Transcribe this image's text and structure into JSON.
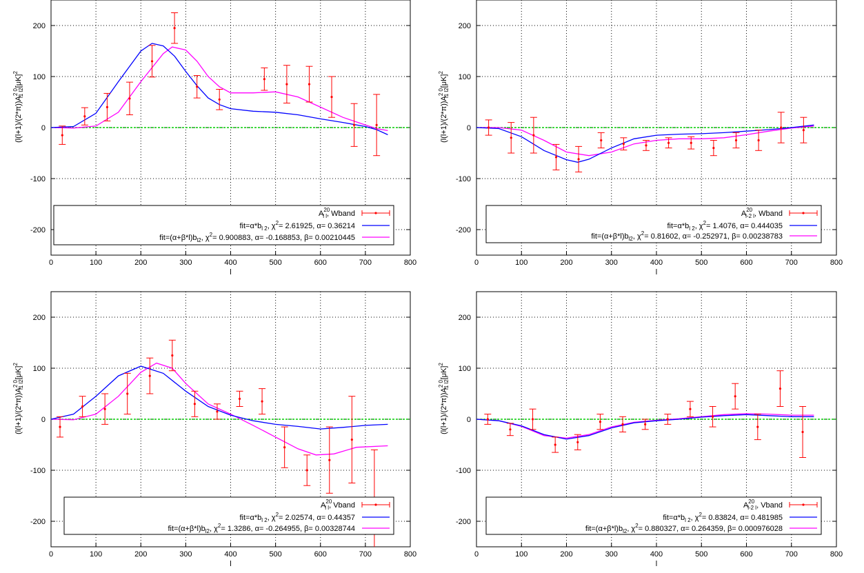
{
  "figure": {
    "xlim": [
      0,
      800
    ],
    "ylim": [
      -250,
      250
    ],
    "xticks": [
      0,
      100,
      200,
      300,
      400,
      500,
      600,
      700,
      800
    ],
    "yticks": [
      -200,
      -100,
      0,
      100,
      200
    ],
    "grid": true,
    "colors": {
      "data": "#ff0000",
      "fit1": "#0000ff",
      "fit2": "#ff00ff",
      "zero": "#00cc00",
      "grid": "#000000",
      "text": "#000000"
    },
    "legend_symbol_name": "A",
    "legend_symbol_sup": "20",
    "legend_location": "bottom"
  },
  "chart_data": [
    {
      "type": "line",
      "xlabel": "l",
      "ylabel": "(l(l+1)/(2*π))A",
      "ylabel_sup": "2 0",
      "ylabel_sub": "l1 l2",
      "ylabel_unit": "[μK]",
      "ylabel_unit_sup": "2",
      "legend_sub": "l l",
      "legend_band": ", Wband",
      "fit1_pre": "fit=α*b",
      "fit1_sub": "l 2",
      "fit1_chi_pre": ", χ",
      "fit1_chi_sup": "2",
      "fit1_text": "= 2.61925, α= 0.36214",
      "fit2_pre": "fit=(α+β*l)b",
      "fit2_sub": "l2",
      "fit2_chi_pre": ", χ",
      "fit2_chi_sup": "2",
      "fit2_text": "= 0.900883, α= -0.168853, β= 0.00210445",
      "data_points": [
        {
          "x": 25,
          "y": -15,
          "err": 18
        },
        {
          "x": 75,
          "y": 22,
          "err": 17
        },
        {
          "x": 125,
          "y": 40,
          "err": 27
        },
        {
          "x": 175,
          "y": 57,
          "err": 32
        },
        {
          "x": 225,
          "y": 130,
          "err": 31
        },
        {
          "x": 275,
          "y": 195,
          "err": 30
        },
        {
          "x": 325,
          "y": 80,
          "err": 22
        },
        {
          "x": 375,
          "y": 55,
          "err": 20
        },
        {
          "x": 475,
          "y": 95,
          "err": 22
        },
        {
          "x": 525,
          "y": 85,
          "err": 37
        },
        {
          "x": 575,
          "y": 85,
          "err": 35
        },
        {
          "x": 625,
          "y": 60,
          "err": 40
        },
        {
          "x": 675,
          "y": 5,
          "err": 42
        },
        {
          "x": 725,
          "y": 5,
          "err": 60
        }
      ],
      "fit1_curve": [
        [
          0,
          0
        ],
        [
          50,
          2
        ],
        [
          100,
          28
        ],
        [
          150,
          90
        ],
        [
          200,
          150
        ],
        [
          225,
          165
        ],
        [
          250,
          160
        ],
        [
          275,
          140
        ],
        [
          300,
          110
        ],
        [
          325,
          82
        ],
        [
          350,
          58
        ],
        [
          375,
          45
        ],
        [
          400,
          37
        ],
        [
          450,
          32
        ],
        [
          500,
          30
        ],
        [
          550,
          25
        ],
        [
          600,
          17
        ],
        [
          650,
          10
        ],
        [
          700,
          2
        ],
        [
          725,
          -4
        ],
        [
          750,
          -14
        ]
      ],
      "fit2_curve": [
        [
          0,
          0
        ],
        [
          50,
          -1
        ],
        [
          100,
          3
        ],
        [
          150,
          30
        ],
        [
          200,
          90
        ],
        [
          250,
          145
        ],
        [
          270,
          158
        ],
        [
          300,
          152
        ],
        [
          325,
          130
        ],
        [
          350,
          100
        ],
        [
          375,
          80
        ],
        [
          400,
          68
        ],
        [
          450,
          68
        ],
        [
          500,
          70
        ],
        [
          550,
          60
        ],
        [
          600,
          40
        ],
        [
          650,
          20
        ],
        [
          700,
          5
        ],
        [
          725,
          -2
        ],
        [
          750,
          -6
        ]
      ]
    },
    {
      "type": "line",
      "xlabel": "l",
      "ylabel": "(l(l+1)/(2*π))A",
      "ylabel_sup": "2 0",
      "ylabel_sub": "l1 l2",
      "ylabel_unit": "[μK]",
      "ylabel_unit_sup": "2",
      "legend_sub": "l-2 l",
      "legend_band": ", Wband",
      "fit1_pre": "fit=α*b",
      "fit1_sub": "l 2",
      "fit1_chi_pre": ", χ",
      "fit1_chi_sup": "2",
      "fit1_text": "= 1.4076, α= 0.444035",
      "fit2_pre": "fit=(α+β*l)b",
      "fit2_sub": "l2",
      "fit2_chi_pre": ", χ",
      "fit2_chi_sup": "2",
      "fit2_text": "= 0.81602, α= -0.252971, β= 0.00238783",
      "data_points": [
        {
          "x": 27,
          "y": 0,
          "err": 15
        },
        {
          "x": 77,
          "y": -20,
          "err": 30
        },
        {
          "x": 127,
          "y": -15,
          "err": 35
        },
        {
          "x": 177,
          "y": -58,
          "err": 25
        },
        {
          "x": 227,
          "y": -62,
          "err": 25
        },
        {
          "x": 277,
          "y": -25,
          "err": 15
        },
        {
          "x": 327,
          "y": -32,
          "err": 12
        },
        {
          "x": 377,
          "y": -35,
          "err": 10
        },
        {
          "x": 427,
          "y": -30,
          "err": 10
        },
        {
          "x": 477,
          "y": -30,
          "err": 12
        },
        {
          "x": 527,
          "y": -40,
          "err": 15
        },
        {
          "x": 577,
          "y": -25,
          "err": 15
        },
        {
          "x": 627,
          "y": -25,
          "err": 20
        },
        {
          "x": 677,
          "y": 0,
          "err": 30
        },
        {
          "x": 727,
          "y": -5,
          "err": 25
        }
      ],
      "fit1_curve": [
        [
          0,
          0
        ],
        [
          50,
          -2
        ],
        [
          100,
          -18
        ],
        [
          150,
          -45
        ],
        [
          200,
          -63
        ],
        [
          225,
          -68
        ],
        [
          250,
          -62
        ],
        [
          300,
          -40
        ],
        [
          350,
          -22
        ],
        [
          400,
          -15
        ],
        [
          450,
          -13
        ],
        [
          500,
          -12
        ],
        [
          550,
          -10
        ],
        [
          600,
          -7
        ],
        [
          650,
          -4
        ],
        [
          700,
          0
        ],
        [
          750,
          5
        ]
      ],
      "fit2_curve": [
        [
          0,
          0
        ],
        [
          50,
          0
        ],
        [
          100,
          -5
        ],
        [
          150,
          -25
        ],
        [
          200,
          -48
        ],
        [
          250,
          -55
        ],
        [
          300,
          -48
        ],
        [
          350,
          -32
        ],
        [
          400,
          -25
        ],
        [
          450,
          -22
        ],
        [
          500,
          -22
        ],
        [
          550,
          -20
        ],
        [
          600,
          -14
        ],
        [
          650,
          -7
        ],
        [
          700,
          -1
        ],
        [
          750,
          3
        ]
      ]
    },
    {
      "type": "line",
      "xlabel": "l",
      "ylabel": "(l(l+1)/(2*π))A",
      "ylabel_sup": "2 0",
      "ylabel_sub": "l1 l2",
      "ylabel_unit": "[μK]",
      "ylabel_unit_sup": "2",
      "legend_sub": "l l",
      "legend_band": ", Vband",
      "fit1_pre": "fit=α*b",
      "fit1_sub": "l 2",
      "fit1_chi_pre": ", χ",
      "fit1_chi_sup": "2",
      "fit1_text": "= 2.02574, α= 0.44357",
      "fit2_pre": "fit=(α+β*l)b",
      "fit2_sub": "l2",
      "fit2_chi_pre": ", χ",
      "fit2_chi_sup": "2",
      "fit2_text": "= 1.3286, α= -0.264955, β= 0.00328744",
      "data_points": [
        {
          "x": 20,
          "y": -15,
          "err": 20
        },
        {
          "x": 70,
          "y": 25,
          "err": 20
        },
        {
          "x": 120,
          "y": 20,
          "err": 30
        },
        {
          "x": 170,
          "y": 50,
          "err": 40
        },
        {
          "x": 220,
          "y": 85,
          "err": 35
        },
        {
          "x": 270,
          "y": 125,
          "err": 30
        },
        {
          "x": 320,
          "y": 30,
          "err": 25
        },
        {
          "x": 370,
          "y": 15,
          "err": 15
        },
        {
          "x": 420,
          "y": 40,
          "err": 15
        },
        {
          "x": 470,
          "y": 35,
          "err": 25
        },
        {
          "x": 520,
          "y": -55,
          "err": 40
        },
        {
          "x": 570,
          "y": -100,
          "err": 30
        },
        {
          "x": 620,
          "y": -80,
          "err": 65
        },
        {
          "x": 670,
          "y": -40,
          "err": 85
        },
        {
          "x": 720,
          "y": -180,
          "err": 120
        }
      ],
      "fit1_curve": [
        [
          0,
          0
        ],
        [
          50,
          10
        ],
        [
          100,
          45
        ],
        [
          150,
          85
        ],
        [
          200,
          104
        ],
        [
          250,
          90
        ],
        [
          300,
          55
        ],
        [
          350,
          25
        ],
        [
          400,
          8
        ],
        [
          450,
          -3
        ],
        [
          500,
          -10
        ],
        [
          550,
          -14
        ],
        [
          600,
          -19
        ],
        [
          650,
          -16
        ],
        [
          700,
          -12
        ],
        [
          750,
          -10
        ]
      ],
      "fit2_curve": [
        [
          0,
          0
        ],
        [
          50,
          -1
        ],
        [
          100,
          10
        ],
        [
          150,
          45
        ],
        [
          200,
          92
        ],
        [
          235,
          110
        ],
        [
          270,
          100
        ],
        [
          300,
          70
        ],
        [
          350,
          30
        ],
        [
          400,
          10
        ],
        [
          450,
          -12
        ],
        [
          500,
          -35
        ],
        [
          550,
          -58
        ],
        [
          590,
          -70
        ],
        [
          630,
          -68
        ],
        [
          680,
          -55
        ],
        [
          750,
          -52
        ]
      ]
    },
    {
      "type": "line",
      "xlabel": "l",
      "ylabel": "(l(l+1)/(2*π))A",
      "ylabel_sup": "2 0",
      "ylabel_sub": "l1 l2",
      "ylabel_unit": "[μK]",
      "ylabel_unit_sup": "2",
      "legend_sub": "l-2 l",
      "legend_band": ", Vband",
      "fit1_pre": "fit=α*b",
      "fit1_sub": "l 2",
      "fit1_chi_pre": ", χ",
      "fit1_chi_sup": "2",
      "fit1_text": "= 0.83824, α= 0.481985",
      "fit2_pre": "fit=(α+β*l)b",
      "fit2_sub": "l2",
      "fit2_chi_pre": ", χ",
      "fit2_chi_sup": "2",
      "fit2_text": "= 0.880327, α= 0.264359, β= 0.000976028",
      "data_points": [
        {
          "x": 25,
          "y": 0,
          "err": 10
        },
        {
          "x": 75,
          "y": -20,
          "err": 12
        },
        {
          "x": 125,
          "y": 0,
          "err": 20
        },
        {
          "x": 175,
          "y": -50,
          "err": 15
        },
        {
          "x": 225,
          "y": -45,
          "err": 15
        },
        {
          "x": 275,
          "y": -5,
          "err": 15
        },
        {
          "x": 325,
          "y": -10,
          "err": 15
        },
        {
          "x": 375,
          "y": -10,
          "err": 10
        },
        {
          "x": 425,
          "y": 0,
          "err": 10
        },
        {
          "x": 475,
          "y": 20,
          "err": 15
        },
        {
          "x": 525,
          "y": 5,
          "err": 20
        },
        {
          "x": 575,
          "y": 45,
          "err": 25
        },
        {
          "x": 625,
          "y": -15,
          "err": 25
        },
        {
          "x": 675,
          "y": 60,
          "err": 35
        },
        {
          "x": 725,
          "y": -25,
          "err": 50
        }
      ],
      "fit1_curve": [
        [
          0,
          0
        ],
        [
          50,
          -3
        ],
        [
          100,
          -13
        ],
        [
          150,
          -30
        ],
        [
          200,
          -39
        ],
        [
          250,
          -32
        ],
        [
          300,
          -17
        ],
        [
          350,
          -7
        ],
        [
          400,
          -3
        ],
        [
          450,
          0
        ],
        [
          500,
          4
        ],
        [
          550,
          7
        ],
        [
          600,
          9
        ],
        [
          650,
          7
        ],
        [
          700,
          5
        ],
        [
          750,
          5
        ]
      ],
      "fit2_curve": [
        [
          0,
          0
        ],
        [
          50,
          -3
        ],
        [
          100,
          -14
        ],
        [
          150,
          -32
        ],
        [
          200,
          -37
        ],
        [
          250,
          -30
        ],
        [
          300,
          -15
        ],
        [
          350,
          -6
        ],
        [
          400,
          -2
        ],
        [
          450,
          1
        ],
        [
          500,
          5
        ],
        [
          550,
          9
        ],
        [
          600,
          11
        ],
        [
          650,
          10
        ],
        [
          700,
          8
        ],
        [
          750,
          8
        ]
      ]
    }
  ]
}
